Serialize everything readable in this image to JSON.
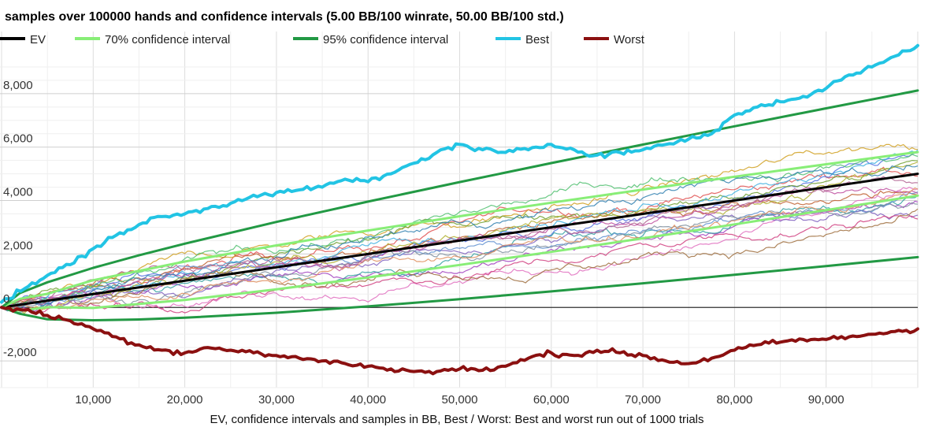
{
  "chart_data": {
    "type": "line",
    "title": "samples over 100000 hands and confidence intervals (5.00 BB/100 winrate, 50.00 BB/100 std.)",
    "xlabel": "EV, confidence intervals and samples in BB, Best / Worst: Best and worst run out of 1000 trials",
    "ylabel": "",
    "xlim": [
      0,
      100000
    ],
    "ylim": [
      -3000,
      9500
    ],
    "x_ticks": [
      10000,
      20000,
      30000,
      40000,
      50000,
      60000,
      70000,
      80000,
      90000
    ],
    "x_tick_labels": [
      "10,000",
      "20,000",
      "30,000",
      "40,000",
      "50,000",
      "60,000",
      "70,000",
      "80,000",
      "90,000"
    ],
    "y_ticks": [
      -2000,
      0,
      2000,
      4000,
      6000,
      8000
    ],
    "y_tick_labels": [
      "-2,000",
      "0",
      "2,000",
      "4,000",
      "6,000",
      "8,000"
    ],
    "grid": true,
    "legend_position": "top",
    "legend": [
      {
        "label": "EV",
        "color": "#000000"
      },
      {
        "label": "70% confidence interval",
        "color": "#88ee77"
      },
      {
        "label": "95% confidence interval",
        "color": "#229944"
      },
      {
        "label": "Best",
        "color": "#22c4e4"
      },
      {
        "label": "Worst",
        "color": "#8b1010"
      }
    ],
    "series": [
      {
        "name": "EV",
        "color": "#000000",
        "width": 3,
        "x": [
          0,
          100000
        ],
        "y": [
          0,
          5000
        ]
      },
      {
        "name": "70% confidence interval",
        "color": "#88ee77",
        "width": 3,
        "x": [
          0,
          2000,
          5000,
          10000,
          20000,
          30000,
          40000,
          50000,
          60000,
          70000,
          80000,
          90000,
          100000
        ],
        "y": [
          0,
          323,
          510,
          1018,
          1718,
          2321,
          2880,
          3411,
          3920,
          4413,
          4891,
          5358,
          5815
        ]
      },
      {
        "name": "70% confidence interval",
        "color": "#88ee77",
        "width": 3,
        "x": [
          0,
          2000,
          5000,
          10000,
          20000,
          30000,
          40000,
          50000,
          60000,
          70000,
          80000,
          90000,
          100000
        ],
        "y": [
          0,
          -123,
          10,
          -18,
          282,
          679,
          1120,
          1589,
          2080,
          2587,
          3109,
          3642,
          4185
        ]
      },
      {
        "name": "95% confidence interval",
        "color": "#229944",
        "width": 3,
        "x": [
          0,
          2000,
          5000,
          10000,
          15000,
          20000,
          30000,
          40000,
          50000,
          60000,
          70000,
          80000,
          90000,
          100000
        ],
        "y": [
          0,
          538,
          943,
          1480,
          1950,
          2386,
          3199,
          3960,
          4691,
          5401,
          6096,
          6779,
          7452,
          8117
        ]
      },
      {
        "name": "95% confidence interval",
        "color": "#229944",
        "width": 3,
        "x": [
          0,
          2000,
          5000,
          10000,
          15000,
          20000,
          30000,
          40000,
          50000,
          60000,
          70000,
          80000,
          90000,
          100000
        ],
        "y": [
          0,
          -238,
          -443,
          -480,
          -450,
          -386,
          -199,
          40,
          309,
          599,
          904,
          1221,
          1548,
          1883
        ]
      },
      {
        "name": "Best",
        "color": "#22c4e4",
        "width": 4,
        "x": [
          0,
          2500,
          5000,
          7500,
          10000,
          12500,
          15000,
          17500,
          20000,
          22500,
          25000,
          27500,
          30000,
          32500,
          35000,
          37500,
          40000,
          42500,
          45000,
          47500,
          50000,
          52500,
          55000,
          57500,
          60000,
          62500,
          65000,
          67500,
          70000,
          72500,
          75000,
          77500,
          80000,
          82500,
          85000,
          87500,
          90000,
          92500,
          95000,
          97500,
          100000
        ],
        "y": [
          200,
          700,
          1200,
          1600,
          2200,
          2700,
          3100,
          3400,
          3500,
          3700,
          3900,
          4200,
          4300,
          4400,
          4500,
          4800,
          4700,
          5000,
          5400,
          5800,
          6100,
          5900,
          5800,
          5900,
          6100,
          5900,
          5700,
          5800,
          5900,
          6100,
          6300,
          6500,
          7200,
          7500,
          7700,
          7900,
          8200,
          8700,
          9000,
          9400,
          9800
        ]
      },
      {
        "name": "Worst",
        "color": "#8b1010",
        "width": 4,
        "x": [
          0,
          2500,
          5000,
          7500,
          10000,
          12500,
          15000,
          17500,
          20000,
          22500,
          25000,
          27500,
          30000,
          32500,
          35000,
          37500,
          40000,
          42500,
          45000,
          47500,
          50000,
          52500,
          55000,
          57500,
          60000,
          62500,
          65000,
          67500,
          70000,
          72500,
          75000,
          77500,
          80000,
          82500,
          85000,
          87500,
          90000,
          92500,
          95000,
          97500,
          100000
        ],
        "y": [
          0,
          -100,
          -300,
          -500,
          -800,
          -1100,
          -1400,
          -1600,
          -1700,
          -1500,
          -1600,
          -1700,
          -1800,
          -1900,
          -2000,
          -2100,
          -2200,
          -2300,
          -2400,
          -2400,
          -2300,
          -2350,
          -2200,
          -1900,
          -1700,
          -1800,
          -1600,
          -1700,
          -1800,
          -2000,
          -2100,
          -1900,
          -1600,
          -1400,
          -1300,
          -1200,
          -1200,
          -1100,
          -1000,
          -900,
          -800
        ]
      }
    ]
  }
}
